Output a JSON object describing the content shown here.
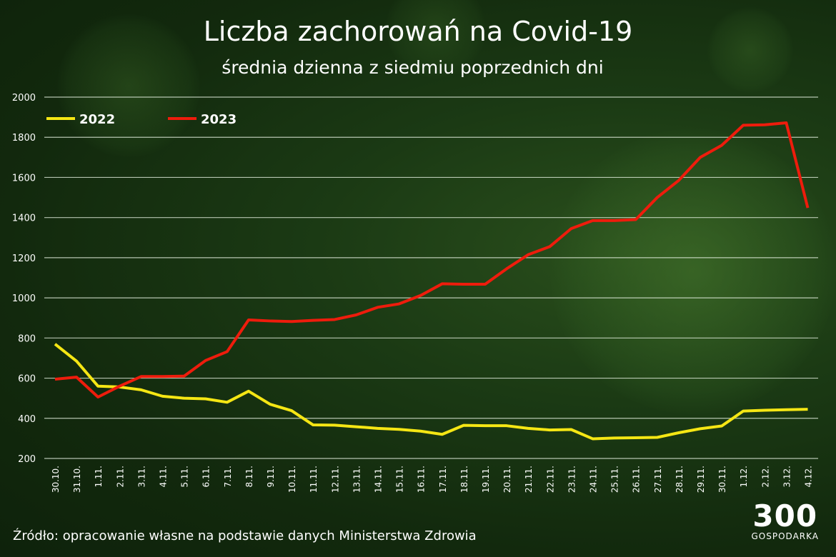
{
  "title": "Liczba zachorowań na Covid-19",
  "subtitle": "średnia dzienna z siedmiu poprzednich dni",
  "source": "Źródło: opracowanie własne na podstawie danych Ministerstwa Zdrowia",
  "logo": {
    "number": "300",
    "text": "GOSPODARKA"
  },
  "chart_data": {
    "type": "line",
    "title": "Liczba zachorowań na Covid-19",
    "subtitle": "średnia dzienna z siedmiu poprzednich dni",
    "categories": [
      "30.10.",
      "31.10.",
      "1.11.",
      "2.11.",
      "3.11.",
      "4.11.",
      "5.11.",
      "6.11.",
      "7.11.",
      "8.11.",
      "9.11.",
      "10.11.",
      "11.11.",
      "12.11.",
      "13.11.",
      "14.11.",
      "15.11.",
      "16.11.",
      "17.11.",
      "18.11.",
      "19.11.",
      "20.11.",
      "21.11.",
      "22.11.",
      "23.11.",
      "24.11.",
      "25.11.",
      "26.11.",
      "27.11.",
      "28.11.",
      "29.11.",
      "30.11.",
      "1.12.",
      "2.12.",
      "3.12.",
      "4.12."
    ],
    "series": [
      {
        "name": "2022",
        "color": "#f5e614",
        "values": [
          770,
          685,
          560,
          556,
          542,
          510,
          500,
          497,
          480,
          535,
          470,
          438,
          367,
          366,
          358,
          350,
          345,
          336,
          320,
          365,
          363,
          363,
          350,
          342,
          344,
          298,
          302,
          303,
          305,
          328,
          348,
          362,
          436,
          440,
          443,
          445
        ]
      },
      {
        "name": "2023",
        "color": "#ee1c0c",
        "values": [
          595,
          605,
          506,
          560,
          608,
          608,
          610,
          688,
          732,
          890,
          885,
          882,
          888,
          892,
          915,
          953,
          970,
          1012,
          1070,
          1068,
          1068,
          1145,
          1215,
          1255,
          1345,
          1385,
          1385,
          1390,
          1500,
          1585,
          1700,
          1760,
          1860,
          1862,
          1872,
          1448
        ]
      }
    ],
    "ylim": [
      200,
      2000
    ],
    "yticks": [
      200,
      400,
      600,
      800,
      1000,
      1200,
      1400,
      1600,
      1800,
      2000
    ],
    "grid": true,
    "legend": "top-left"
  }
}
